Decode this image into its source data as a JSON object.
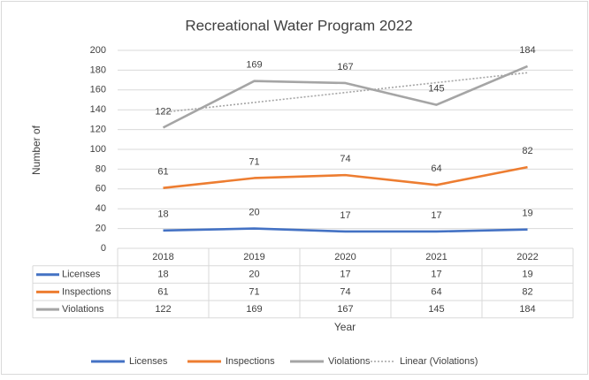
{
  "chart_data": {
    "type": "line",
    "title": "Recreational Water Program 2022",
    "xlabel": "Year",
    "ylabel": "Number of",
    "categories": [
      "2018",
      "2019",
      "2020",
      "2021",
      "2022"
    ],
    "series": [
      {
        "name": "Licenses",
        "color": "#4472c4",
        "values": [
          18,
          20,
          17,
          17,
          19
        ]
      },
      {
        "name": "Inspections",
        "color": "#ed7d31",
        "values": [
          61,
          71,
          74,
          64,
          82
        ]
      },
      {
        "name": "Violations",
        "color": "#a5a5a5",
        "values": [
          122,
          169,
          167,
          145,
          184
        ]
      }
    ],
    "trendline": {
      "name": "Linear (Violations)",
      "color": "#a5a5a5",
      "values": [
        137.4,
        147.4,
        157.4,
        167.4,
        177.4
      ]
    },
    "ylim": [
      0,
      200
    ],
    "yticks": [
      0,
      20,
      40,
      60,
      80,
      100,
      120,
      140,
      160,
      180,
      200
    ],
    "grid": true,
    "data_labels": true,
    "data_table": true,
    "legend": "bottom"
  }
}
